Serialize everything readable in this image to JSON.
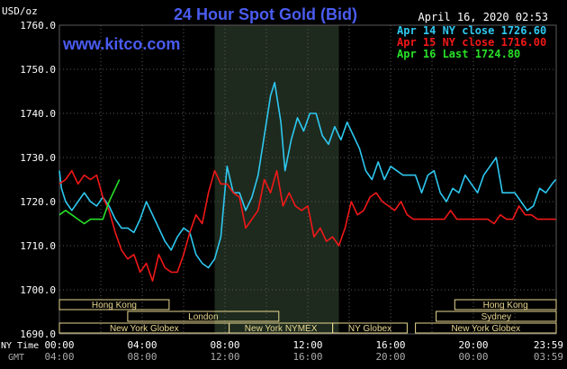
{
  "header": {
    "unit": "USD/oz",
    "title": "24 Hour Spot Gold (Bid)",
    "timestamp": "April 16, 2020 02:53",
    "watermark": "www.kitco.com"
  },
  "colors": {
    "background": "#000000",
    "grid": "#5a5a5a",
    "title": "#4a5cf0",
    "series_apr14": "#2ec8f0",
    "series_apr15": "#f01818",
    "series_apr16": "#28e028",
    "session_box": "#e8d890",
    "session_text": "#e8d890",
    "highlight": "#1e2a1e"
  },
  "chart_data": {
    "type": "line",
    "title": "24 Hour Spot Gold (Bid)",
    "ylabel": "USD/oz",
    "ylim": [
      1690,
      1760
    ],
    "yticks": [
      "1760.0",
      "1750.0",
      "1740.0",
      "1730.0",
      "1720.0",
      "1710.0",
      "1700.0",
      "1690.0"
    ],
    "xlim": [
      0,
      24
    ],
    "xticks_ny": [
      "00:00",
      "04:00",
      "08:00",
      "12:00",
      "16:00",
      "20:00",
      "23:59"
    ],
    "xticks_gmt": [
      "04:00",
      "08:00",
      "12:00",
      "16:00",
      "20:00",
      "00:00",
      "03:59"
    ],
    "x_axis_label_ny": "NY Time",
    "x_axis_label_gmt": "GMT",
    "highlight_range": [
      7.5,
      13.5
    ],
    "legend": [
      {
        "label": "Apr 14 NY close 1726.60",
        "color": "#2ec8f0"
      },
      {
        "label": "Apr 15 NY close 1716.00",
        "color": "#f01818"
      },
      {
        "label": "Apr 16 Last 1724.80",
        "color": "#28e028"
      }
    ],
    "series": [
      {
        "name": "Apr 14",
        "x": [
          0,
          0.1,
          0.3,
          0.6,
          0.9,
          1.2,
          1.5,
          1.8,
          2.1,
          2.4,
          2.7,
          3.0,
          3.3,
          3.6,
          3.9,
          4.2,
          4.5,
          4.8,
          5.1,
          5.4,
          5.7,
          6.0,
          6.3,
          6.6,
          6.9,
          7.2,
          7.5,
          7.8,
          8.1,
          8.4,
          8.7,
          9.0,
          9.3,
          9.6,
          9.9,
          10.2,
          10.4,
          10.7,
          10.9,
          11.2,
          11.5,
          11.8,
          12.1,
          12.4,
          12.7,
          13.0,
          13.3,
          13.6,
          13.9,
          14.2,
          14.5,
          14.8,
          15.1,
          15.4,
          15.7,
          16.0,
          16.3,
          16.6,
          16.9,
          17.2,
          17.5,
          17.8,
          18.1,
          18.4,
          18.7,
          19.0,
          19.3,
          19.6,
          19.9,
          20.2,
          20.5,
          20.8,
          21.1,
          21.4,
          21.7,
          22.0,
          22.3,
          22.6,
          22.9,
          23.2,
          23.5,
          23.8,
          23.98
        ],
        "values": [
          1727,
          1723,
          1720,
          1718,
          1720,
          1722,
          1720,
          1719,
          1721,
          1719,
          1716,
          1714,
          1714,
          1713,
          1716,
          1720,
          1717,
          1714,
          1711,
          1709,
          1712,
          1714,
          1713,
          1708,
          1706,
          1705,
          1707,
          1712,
          1728,
          1722,
          1722,
          1718,
          1721,
          1726,
          1735,
          1744,
          1747,
          1738,
          1727,
          1734,
          1739,
          1736,
          1740,
          1740,
          1735,
          1733,
          1737,
          1734,
          1738,
          1735,
          1732,
          1727,
          1725,
          1729,
          1725,
          1728,
          1727,
          1726,
          1726,
          1726,
          1722,
          1726,
          1727,
          1722,
          1720,
          1723,
          1722,
          1726,
          1724,
          1722,
          1726,
          1728,
          1730,
          1722,
          1722,
          1722,
          1720,
          1718,
          1719,
          1723,
          1722,
          1724,
          1725
        ]
      },
      {
        "name": "Apr 15",
        "x": [
          0,
          0.3,
          0.6,
          0.9,
          1.2,
          1.5,
          1.8,
          2.1,
          2.4,
          2.7,
          3.0,
          3.3,
          3.6,
          3.9,
          4.2,
          4.5,
          4.8,
          5.1,
          5.4,
          5.7,
          6.0,
          6.3,
          6.6,
          6.9,
          7.2,
          7.5,
          7.8,
          8.1,
          8.4,
          8.7,
          9.0,
          9.3,
          9.6,
          9.9,
          10.2,
          10.5,
          10.8,
          11.1,
          11.4,
          11.7,
          12.0,
          12.3,
          12.6,
          12.9,
          13.2,
          13.5,
          13.8,
          14.1,
          14.4,
          14.7,
          15.0,
          15.3,
          15.6,
          15.9,
          16.2,
          16.5,
          16.8,
          17.1,
          17.4,
          17.7,
          18.0,
          18.3,
          18.6,
          18.9,
          19.2,
          19.5,
          19.8,
          20.1,
          20.4,
          20.7,
          21.0,
          21.3,
          21.6,
          21.9,
          22.2,
          22.5,
          22.8,
          23.1,
          23.4,
          23.7,
          23.98
        ],
        "values": [
          1724,
          1725,
          1727,
          1724,
          1726,
          1725,
          1726,
          1721,
          1718,
          1713,
          1709,
          1707,
          1708,
          1704,
          1706,
          1702,
          1708,
          1705,
          1704,
          1704,
          1708,
          1713,
          1717,
          1715,
          1722,
          1727,
          1724,
          1724,
          1722,
          1721,
          1714,
          1716,
          1718,
          1725,
          1722,
          1727,
          1719,
          1722,
          1719,
          1718,
          1719,
          1712,
          1714,
          1711,
          1712,
          1710,
          1714,
          1720,
          1717,
          1718,
          1721,
          1722,
          1720,
          1719,
          1718,
          1720,
          1717,
          1716,
          1716,
          1716,
          1716,
          1716,
          1716,
          1718,
          1716,
          1716,
          1716,
          1716,
          1716,
          1716,
          1715,
          1717,
          1716,
          1716,
          1719,
          1717,
          1717,
          1716,
          1716,
          1716,
          1716
        ]
      },
      {
        "name": "Apr 16",
        "x": [
          0,
          0.3,
          0.6,
          0.9,
          1.2,
          1.5,
          1.8,
          2.1,
          2.4,
          2.7,
          2.9
        ],
        "values": [
          1717,
          1718,
          1717,
          1716,
          1715,
          1716,
          1716,
          1716,
          1720,
          1723,
          1725
        ]
      }
    ],
    "sessions": [
      {
        "label": "Hong Kong",
        "start": 0,
        "end": 5.3,
        "row": 0
      },
      {
        "label": "London",
        "start": 3.3,
        "end": 10.6,
        "row": 1
      },
      {
        "label": "New York Globex",
        "start": 0,
        "end": 8.2,
        "row": 2
      },
      {
        "label": "New York NYMEX",
        "start": 8.2,
        "end": 13.2,
        "row": 2
      },
      {
        "label": "NY Globex",
        "start": 13.2,
        "end": 16.8,
        "row": 2
      },
      {
        "label": "Hong Kong",
        "start": 19.1,
        "end": 24,
        "row": 0
      },
      {
        "label": "Sydney",
        "start": 18.2,
        "end": 24,
        "row": 1
      },
      {
        "label": "New York Globex",
        "start": 17.2,
        "end": 24,
        "row": 2
      }
    ]
  }
}
